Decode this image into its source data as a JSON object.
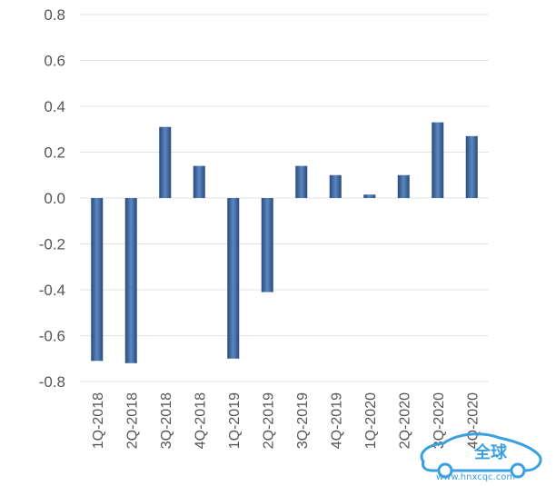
{
  "chart_data": {
    "type": "bar",
    "categories": [
      "1Q-2018",
      "2Q-2018",
      "3Q-2018",
      "4Q-2018",
      "1Q-2019",
      "2Q-2019",
      "3Q-2019",
      "4Q-2019",
      "1Q-2020",
      "2Q-2020",
      "3Q-2020",
      "4Q-2020"
    ],
    "values": [
      -0.71,
      -0.72,
      0.31,
      0.14,
      -0.7,
      -0.41,
      0.14,
      0.1,
      0.015,
      0.1,
      0.33,
      0.27
    ],
    "title": "",
    "xlabel": "",
    "ylabel": "",
    "ylim": [
      -0.8,
      0.8
    ],
    "yticks": [
      "0.8",
      "0.6",
      "0.4",
      "0.2",
      "0.0",
      "-0.2",
      "-0.4",
      "-0.6",
      "-0.8"
    ],
    "grid": true,
    "bar_color": "#3d6aa5",
    "bar_color_dark": "#284a7a",
    "bar_color_light": "#5b87c2"
  },
  "watermark": {
    "logo_text": "全球",
    "url_text": "www.hnxcqc.com",
    "color": "#3aa0e0"
  }
}
